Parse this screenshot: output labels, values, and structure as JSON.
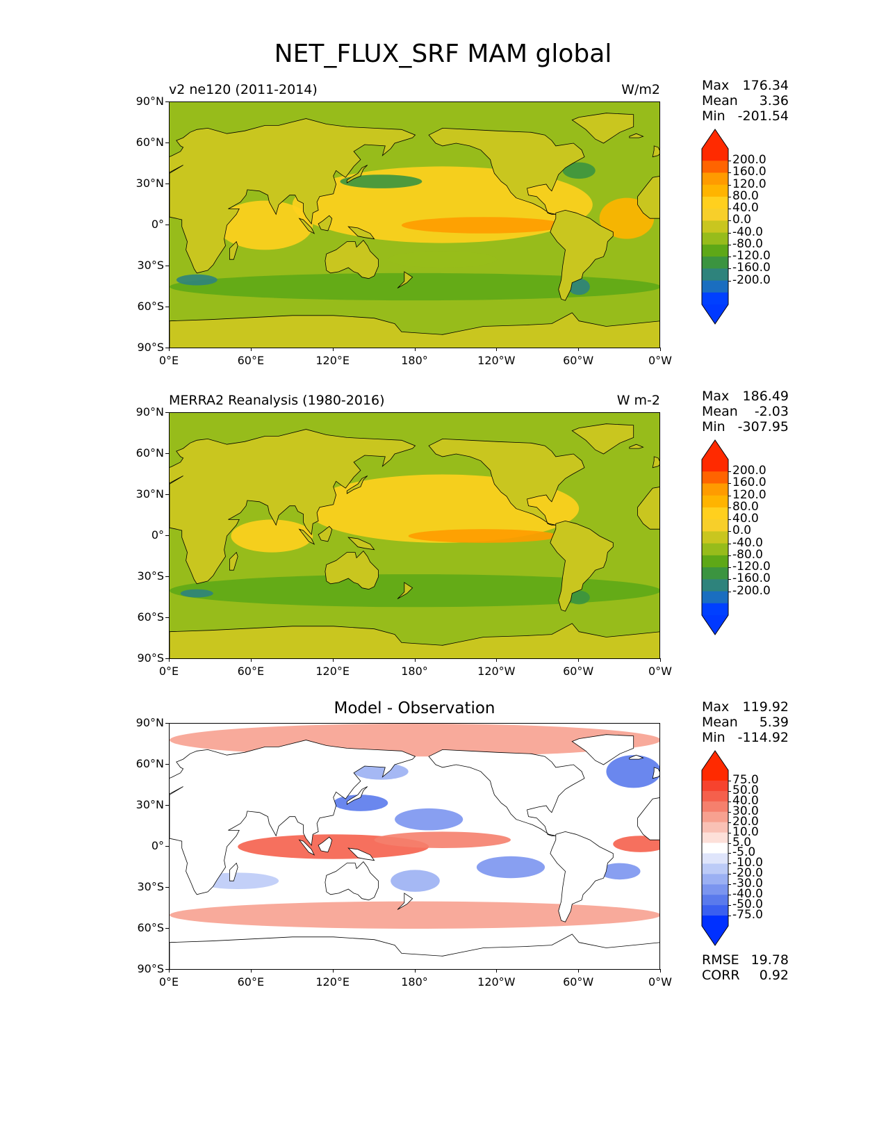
{
  "title": "NET_FLUX_SRF MAM global",
  "x_ticks": [
    "0°E",
    "60°E",
    "120°E",
    "180°",
    "120°W",
    "60°W",
    "0°W"
  ],
  "y_ticks": [
    "90°N",
    "60°N",
    "30°N",
    "0°",
    "30°S",
    "60°S",
    "90°S"
  ],
  "panels": [
    {
      "left_title": "v2 ne120 (2011-2014)",
      "center_title": "",
      "units": "W/m2",
      "stats": [
        {
          "label": "Max",
          "value": "176.34"
        },
        {
          "label": "Mean",
          "value": "3.36"
        },
        {
          "label": "Min",
          "value": "-201.54"
        }
      ],
      "extra_stats": [],
      "colorbar": {
        "labels": [
          "200.0",
          "160.0",
          "120.0",
          "80.0",
          "40.0",
          "0.0",
          "-40.0",
          "-80.0",
          "-120.0",
          "-160.0",
          "-200.0"
        ],
        "colors": [
          "#ff2a00",
          "#ff6400",
          "#ff9b00",
          "#ffb400",
          "#ffd01e",
          "#f7cf2a",
          "#c9c61f",
          "#97bc1b",
          "#5ea817",
          "#3b9440",
          "#2e837c",
          "#1a6ec0",
          "#0040ff"
        ],
        "top_color": "#ff2a00",
        "bottom_color": "#0039ff"
      },
      "map": {
        "palette": "flux",
        "ocean": "#97bc1b",
        "land": "#c9c61f"
      }
    },
    {
      "left_title": "MERRA2 Reanalysis (1980-2016)",
      "center_title": "",
      "units": "W m-2",
      "stats": [
        {
          "label": "Max",
          "value": "186.49"
        },
        {
          "label": "Mean",
          "value": "-2.03"
        },
        {
          "label": "Min",
          "value": "-307.95"
        }
      ],
      "extra_stats": [],
      "colorbar": {
        "labels": [
          "200.0",
          "160.0",
          "120.0",
          "80.0",
          "40.0",
          "0.0",
          "-40.0",
          "-80.0",
          "-120.0",
          "-160.0",
          "-200.0"
        ],
        "colors": [
          "#ff2a00",
          "#ff6400",
          "#ff9b00",
          "#ffb400",
          "#ffd01e",
          "#f7cf2a",
          "#c9c61f",
          "#97bc1b",
          "#5ea817",
          "#3b9440",
          "#2e837c",
          "#1a6ec0",
          "#0040ff"
        ],
        "top_color": "#ff2a00",
        "bottom_color": "#0039ff"
      },
      "map": {
        "palette": "flux",
        "ocean": "#97bc1b",
        "land": "#c9c61f"
      }
    },
    {
      "left_title": "",
      "center_title": "Model - Observation",
      "units": "",
      "stats": [
        {
          "label": "Max",
          "value": "119.92"
        },
        {
          "label": "Mean",
          "value": "5.39"
        },
        {
          "label": "Min",
          "value": "-114.92"
        }
      ],
      "extra_stats": [
        {
          "label": "RMSE",
          "value": "19.78"
        },
        {
          "label": "CORR",
          "value": "0.92"
        }
      ],
      "colorbar": {
        "labels": [
          "75.0",
          "50.0",
          "40.0",
          "30.0",
          "20.0",
          "10.0",
          "5.0",
          "-5.0",
          "-10.0",
          "-20.0",
          "-30.0",
          "-40.0",
          "-50.0",
          "-75.0"
        ],
        "colors": [
          "#ff2a00",
          "#f6432e",
          "#f5604c",
          "#f5806d",
          "#f7a190",
          "#f9c1b5",
          "#fde0d9",
          "#ffffff",
          "#dfe5fb",
          "#bccbf7",
          "#9bb0f3",
          "#7b95ef",
          "#5a7aec",
          "#3a5ff0",
          "#0030ff"
        ],
        "top_color": "#ff2a00",
        "bottom_color": "#0030ff"
      },
      "map": {
        "palette": "diff",
        "ocean": "#ffffff",
        "land": "#ffffff"
      }
    }
  ]
}
